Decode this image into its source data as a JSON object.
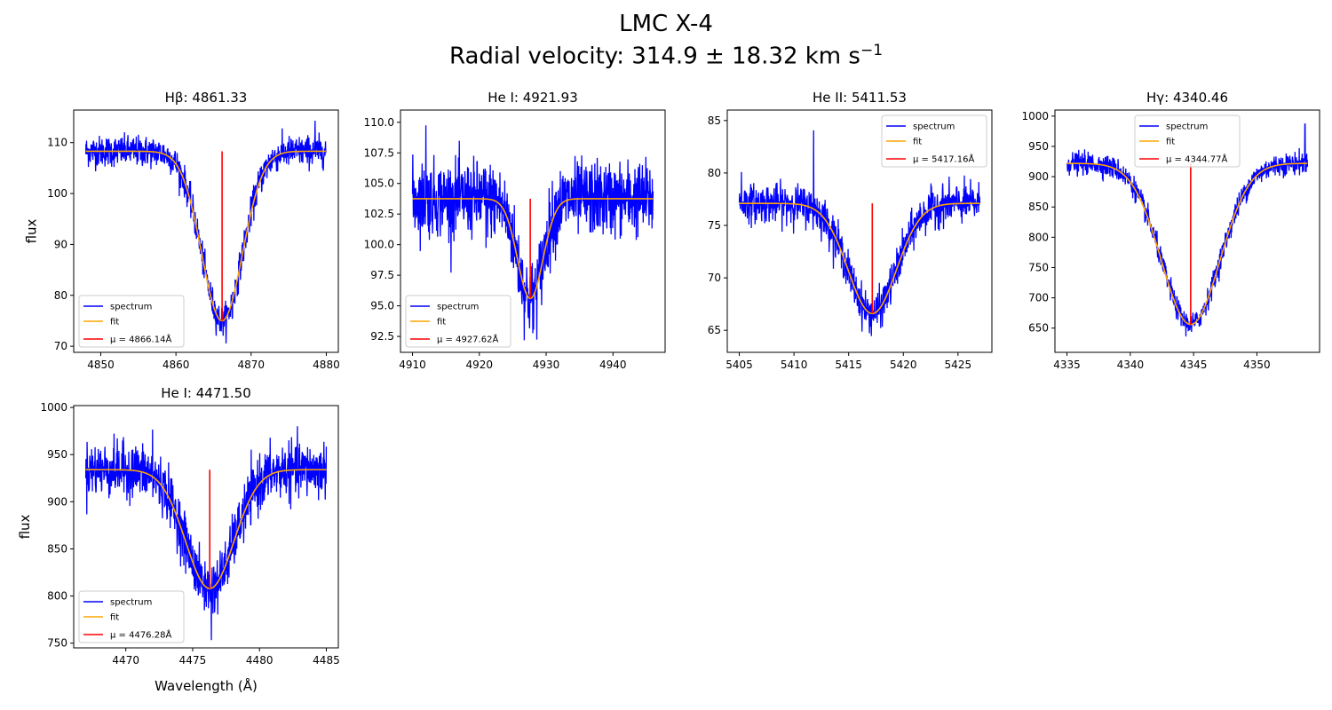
{
  "figure": {
    "title": "LMC X-4",
    "subtitle": "Radial velocity: 314.9 ± 18.32 km s",
    "subtitle_sup": "−1"
  },
  "legend_labels": {
    "spectrum": "spectrum",
    "fit": "fit",
    "mu_prefix": "μ = "
  },
  "colors": {
    "spectrum": "#0000ff",
    "fit": "#ffa500",
    "mu_line": "#ff0000"
  },
  "chart_data": [
    {
      "type": "line",
      "title": "Hβ: 4861.33",
      "ylabel": "flux",
      "xlabel": "",
      "xlim": [
        4846.4,
        4881.6
      ],
      "ylim": [
        68.8,
        116.4
      ],
      "xticks": [
        4850,
        4860,
        4870,
        4880
      ],
      "yticks": [
        70,
        80,
        90,
        100,
        110
      ],
      "legend": "lower-left",
      "mu_label": "4866.14Å",
      "fit": {
        "baseline": 108.3,
        "amplitude": 33.3,
        "mu": 4866.14,
        "sigma": 2.7,
        "x_range": [
          4848,
          4880
        ]
      },
      "spectrum": {
        "noise": 1.5,
        "spikes": [
          [
            4867.5,
            -3.5
          ],
          [
            4878.5,
            6
          ]
        ]
      }
    },
    {
      "type": "line",
      "title": "He I: 4921.93",
      "ylabel": "",
      "xlabel": "",
      "xlim": [
        4908.2,
        4947.8
      ],
      "ylim": [
        91.2,
        111.0
      ],
      "xticks": [
        4910,
        4920,
        4930,
        4940
      ],
      "yticks": [
        92.5,
        95.0,
        97.5,
        100.0,
        102.5,
        105.0,
        107.5,
        110.0
      ],
      "legend": "lower-left",
      "mu_label": "4927.62Å",
      "fit": {
        "baseline": 103.75,
        "amplitude": 8.15,
        "mu": 4927.62,
        "sigma": 1.9,
        "x_range": [
          4910,
          4946
        ]
      },
      "spectrum": {
        "noise": 1.5,
        "spikes": [
          [
            4912,
            6
          ],
          [
            4921,
            -4
          ],
          [
            4928,
            -3
          ]
        ]
      }
    },
    {
      "type": "line",
      "title": "He II: 5411.53",
      "ylabel": "",
      "xlabel": "",
      "xlim": [
        5403.9,
        5428.1
      ],
      "ylim": [
        62.9,
        86.0
      ],
      "xticks": [
        5405,
        5410,
        5415,
        5420,
        5425
      ],
      "yticks": [
        65,
        70,
        75,
        80,
        85
      ],
      "legend": "upper-right",
      "mu_label": "5417.16Å",
      "fit": {
        "baseline": 77.1,
        "amplitude": 10.5,
        "mu": 5417.16,
        "sigma": 2.2,
        "x_range": [
          5405,
          5427
        ]
      },
      "spectrum": {
        "noise": 0.9,
        "spikes": [
          [
            5411.8,
            7.5
          ],
          [
            5405.2,
            3
          ]
        ]
      }
    },
    {
      "type": "line",
      "title": "Hγ: 4340.46",
      "ylabel": "",
      "xlabel": "",
      "xlim": [
        4334.05,
        4354.95
      ],
      "ylim": [
        610,
        1010
      ],
      "xticks": [
        4335,
        4340,
        4345,
        4350
      ],
      "yticks": [
        650,
        700,
        750,
        800,
        850,
        900,
        950,
        1000
      ],
      "legend": "upper-center",
      "mu_label": "4344.77Å",
      "fit": {
        "baseline": 922,
        "amplitude": 266,
        "mu": 4344.77,
        "sigma": 2.3,
        "x_range": [
          4335,
          4354
        ]
      },
      "spectrum": {
        "noise": 9,
        "spikes": [
          [
            4353.8,
            65
          ]
        ]
      }
    },
    {
      "type": "line",
      "title": "He I: 4471.50",
      "ylabel": "flux",
      "xlabel": "Wavelength (Å)",
      "xlim": [
        4466.1,
        4485.9
      ],
      "ylim": [
        745,
        1002
      ],
      "xticks": [
        4470,
        4475,
        4480,
        4485
      ],
      "yticks": [
        750,
        800,
        850,
        900,
        950,
        1000
      ],
      "legend": "lower-left",
      "mu_label": "4476.28Å",
      "fit": {
        "baseline": 934,
        "amplitude": 126,
        "mu": 4476.28,
        "sigma": 1.8,
        "x_range": [
          4467,
          4485
        ]
      },
      "spectrum": {
        "noise": 14,
        "spikes": [
          [
            4476.4,
            -55
          ],
          [
            4472,
            50
          ]
        ]
      }
    }
  ]
}
